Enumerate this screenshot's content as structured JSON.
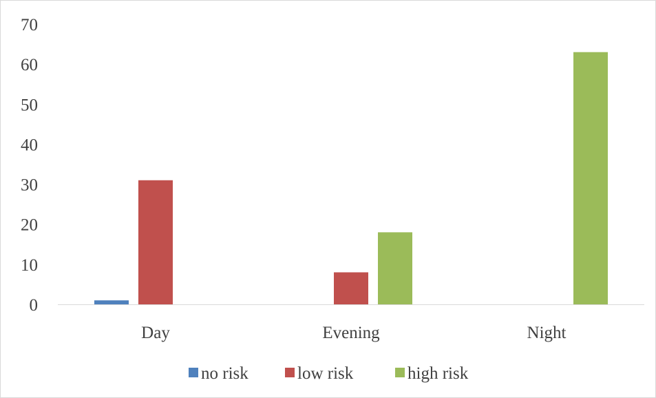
{
  "chart_data": {
    "type": "bar",
    "title": "",
    "xlabel": "",
    "ylabel": "",
    "categories": [
      "Day",
      "Evening",
      "Night"
    ],
    "series": [
      {
        "name": "no risk",
        "color": "#4f81bd",
        "values": [
          1,
          0,
          0
        ]
      },
      {
        "name": "low risk",
        "color": "#c0504d",
        "values": [
          31,
          8,
          0
        ]
      },
      {
        "name": "high risk",
        "color": "#9bbb59",
        "values": [
          0,
          18,
          63
        ]
      }
    ],
    "ylim": [
      0,
      70
    ],
    "yticks": [
      "0",
      "10",
      "20",
      "30",
      "40",
      "50",
      "60",
      "70"
    ],
    "grid": false,
    "legend": "bottom"
  }
}
